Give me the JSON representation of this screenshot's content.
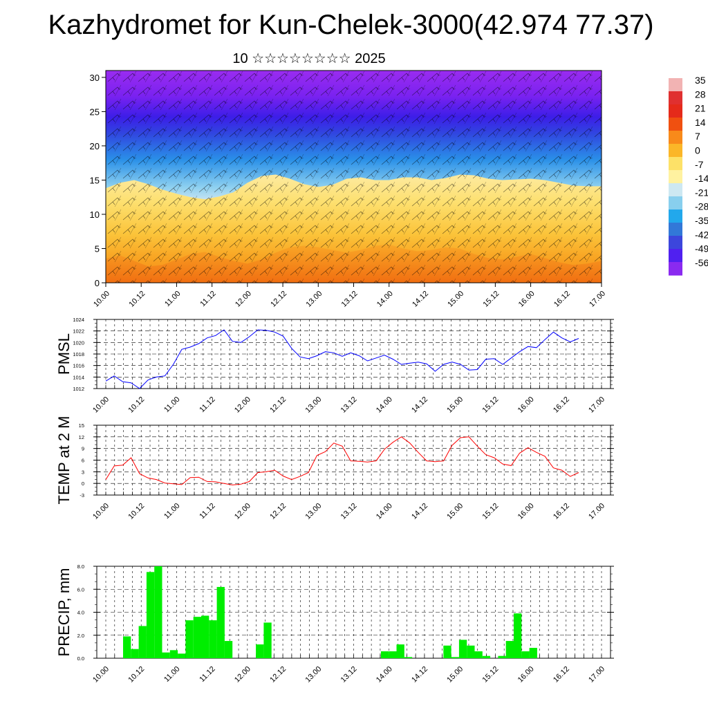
{
  "header": {
    "title": "Kazhydromet for Kun-Chelek-3000(42.974 77.37)",
    "subtitle": "10 ☆☆☆☆☆☆☆☆ 2025"
  },
  "chart_data": [
    {
      "type": "heatmap",
      "description_scalar": "temperature cross-section with wind barbs",
      "x_tick_labels": [
        "10.00",
        "10.12",
        "11.00",
        "11.12",
        "12.00",
        "12.12",
        "13.00",
        "13.12",
        "14.00",
        "14.12",
        "15.00",
        "15.12",
        "16.00",
        "16.12",
        "17.00"
      ],
      "y_tick_labels": [
        "0",
        "5",
        "10",
        "15",
        "20",
        "25",
        "30"
      ],
      "ylim": [
        0,
        31
      ],
      "colorbar_labels": [
        "35",
        "28",
        "21",
        "14",
        "7",
        "0",
        "-7",
        "-14",
        "-21",
        "-28",
        "-35",
        "-42",
        "-49",
        "-56"
      ],
      "colorbar_colors": [
        "#f2b3b3",
        "#e03030",
        "#e52a1a",
        "#f05010",
        "#f88a1a",
        "#fbb628",
        "#fde168",
        "#fff2a0",
        "#cde8f2",
        "#88cfee",
        "#22a8ec",
        "#3278d8",
        "#3c46dc",
        "#5020f0",
        "#8a2af0"
      ],
      "freezing_level_km": [
        13.8,
        14.6,
        15.0,
        14.4,
        13.6,
        13.0,
        12.5,
        12.2,
        12.6,
        13.2,
        14.6,
        15.6,
        15.8,
        15.2,
        14.4,
        14.0,
        14.3,
        15.2,
        15.4,
        15.0,
        15.0,
        15.4,
        15.4,
        15.0,
        15.3,
        15.8,
        15.7,
        15.2,
        15.0,
        15.1,
        15.2,
        15.0,
        14.6,
        14.2,
        14.1,
        14.1
      ],
      "warm_core_km": [
        3.5,
        4.0,
        3.2,
        2.4,
        2.6,
        3.4,
        4.2,
        4.5,
        3.8,
        3.2,
        2.8,
        3.4,
        4.4,
        5.2,
        5.4,
        5.2,
        4.8,
        4.4,
        4.8,
        5.4,
        5.6,
        5.0,
        4.6,
        4.8,
        5.2,
        5.0,
        4.2,
        3.6,
        3.4,
        3.8,
        4.2,
        3.6,
        3.0,
        2.6,
        2.8,
        3.2
      ]
    },
    {
      "type": "line",
      "ylabel": "PMSL",
      "x_tick_labels": [
        "10.00",
        "10.12",
        "11.00",
        "11.12",
        "12.00",
        "12.12",
        "13.00",
        "13.12",
        "14.00",
        "14.12",
        "15.00",
        "15.12",
        "16.00",
        "16.12",
        "17.00"
      ],
      "y_tick_labels": [
        "1012",
        "1014",
        "1016",
        "1018",
        "1020",
        "1022",
        "1024"
      ],
      "ylim": [
        1012,
        1024
      ],
      "series": [
        {
          "color": "#0000ff",
          "values": [
            1013.3,
            1014.2,
            1013.2,
            1013.0,
            1012.0,
            1013.5,
            1014.0,
            1014.2,
            1016.2,
            1018.8,
            1019.2,
            1019.8,
            1020.8,
            1021.2,
            1022.2,
            1020.2,
            1020.0,
            1021.0,
            1022.2,
            1022.1,
            1021.8,
            1021.1,
            1019.0,
            1017.5,
            1017.2,
            1017.7,
            1018.4,
            1018.2,
            1017.6,
            1018.2,
            1017.7,
            1016.8,
            1017.3,
            1017.8,
            1017.1,
            1016.2,
            1016.4,
            1016.6,
            1016.3,
            1015.0,
            1016.2,
            1016.6,
            1016.2,
            1015.2,
            1015.3,
            1017.1,
            1017.2,
            1016.2,
            1017.3,
            1018.4,
            1019.3,
            1019.1,
            1020.5,
            1021.8,
            1020.8,
            1020.1,
            1020.7
          ]
        }
      ]
    },
    {
      "type": "line",
      "ylabel": "TEMP at 2 M",
      "x_tick_labels": [
        "10.00",
        "10.12",
        "11.00",
        "11.12",
        "12.00",
        "12.12",
        "13.00",
        "13.12",
        "14.00",
        "14.12",
        "15.00",
        "15.12",
        "16.00",
        "16.12",
        "17.00"
      ],
      "y_tick_labels": [
        "-3",
        "0",
        "3",
        "6",
        "9",
        "12",
        "15"
      ],
      "ylim": [
        -3,
        15
      ],
      "series": [
        {
          "color": "#ff0000",
          "values": [
            1.0,
            4.5,
            4.7,
            6.6,
            2.5,
            1.4,
            1.0,
            0.1,
            -0.1,
            -0.3,
            1.5,
            1.6,
            0.5,
            0.4,
            0.0,
            -0.4,
            -0.2,
            0.5,
            2.8,
            3.0,
            3.4,
            1.9,
            1.0,
            1.8,
            2.8,
            7.2,
            8.2,
            10.4,
            9.6,
            5.8,
            5.7,
            5.5,
            5.8,
            8.8,
            10.6,
            12.0,
            10.4,
            8.0,
            5.8,
            5.6,
            5.8,
            9.8,
            11.8,
            12.0,
            9.6,
            7.4,
            6.6,
            5.0,
            4.6,
            7.8,
            9.2,
            8.0,
            7.0,
            4.0,
            3.4,
            1.8,
            2.8
          ]
        }
      ]
    },
    {
      "type": "bar",
      "ylabel": "PRECIP, mm",
      "x_tick_labels": [
        "10.00",
        "10.12",
        "11.00",
        "11.12",
        "12.00",
        "12.12",
        "13.00",
        "13.12",
        "14.00",
        "14.12",
        "15.00",
        "15.12",
        "16.00",
        "16.12",
        "17.00"
      ],
      "y_tick_labels": [
        "0.0",
        "2.0",
        "4.0",
        "6.0",
        "8.0"
      ],
      "ylim": [
        0,
        8
      ],
      "bar_color": "#00ee00",
      "values": [
        1.9,
        0.8,
        2.8,
        7.5,
        8.0,
        0.5,
        0.7,
        0.4,
        3.3,
        3.6,
        3.7,
        3.3,
        6.2,
        1.5,
        0.0,
        0.0,
        0.0,
        1.2,
        3.1,
        0.0,
        0.0,
        0.0,
        0.0,
        0.0,
        0.0,
        0.0,
        0.0,
        0.0,
        0.0,
        0.0,
        0.0,
        0.0,
        0.0,
        0.6,
        0.6,
        1.2,
        0.1,
        0.0,
        0.0,
        0.0,
        0.0,
        1.1,
        0.1,
        1.6,
        1.1,
        0.6,
        0.2,
        0.0,
        0.2,
        1.5,
        3.9,
        0.6,
        0.9,
        0.0
      ]
    }
  ]
}
